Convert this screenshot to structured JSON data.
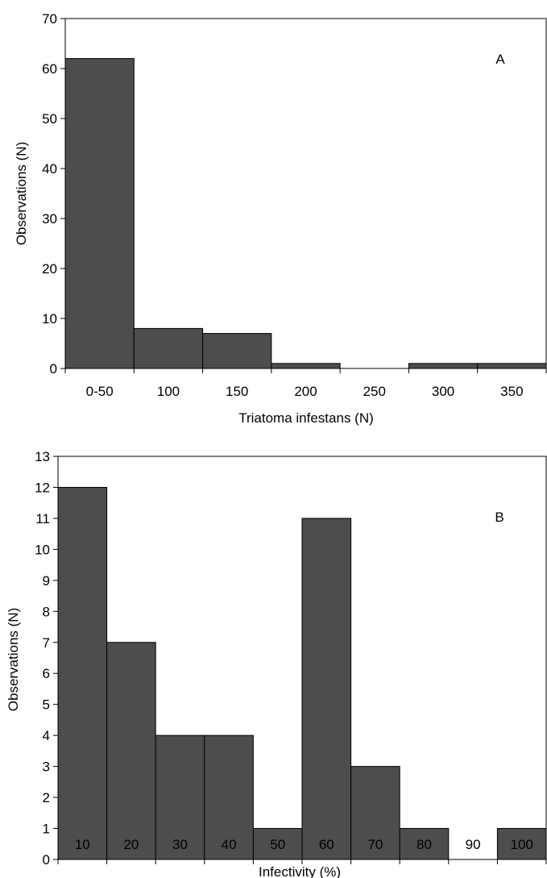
{
  "chart_data": [
    {
      "type": "bar",
      "panel": "A",
      "categories": [
        "0-50",
        "100",
        "150",
        "200",
        "250",
        "300",
        "350"
      ],
      "values": [
        62,
        8,
        7,
        1,
        0,
        1,
        1
      ],
      "xlabel": "Triatoma infestans (N)",
      "ylabel": "Observations (N)",
      "ylim": [
        0,
        70
      ],
      "yticks": [
        0,
        10,
        20,
        30,
        40,
        50,
        60,
        70
      ],
      "grid": false,
      "bar_color": "#4d4d4d"
    },
    {
      "type": "bar",
      "panel": "B",
      "categories": [
        "10",
        "20",
        "30",
        "40",
        "50",
        "60",
        "70",
        "80",
        "90",
        "100"
      ],
      "values": [
        12,
        7,
        4,
        4,
        1,
        11,
        3,
        1,
        0,
        1
      ],
      "xlabel": "Infectivity (%)",
      "ylabel": "Observations (N)",
      "ylim": [
        0,
        13
      ],
      "yticks": [
        0,
        1,
        2,
        3,
        4,
        5,
        6,
        7,
        8,
        9,
        10,
        11,
        12,
        13
      ],
      "grid": false,
      "bar_color": "#4d4d4d"
    }
  ]
}
